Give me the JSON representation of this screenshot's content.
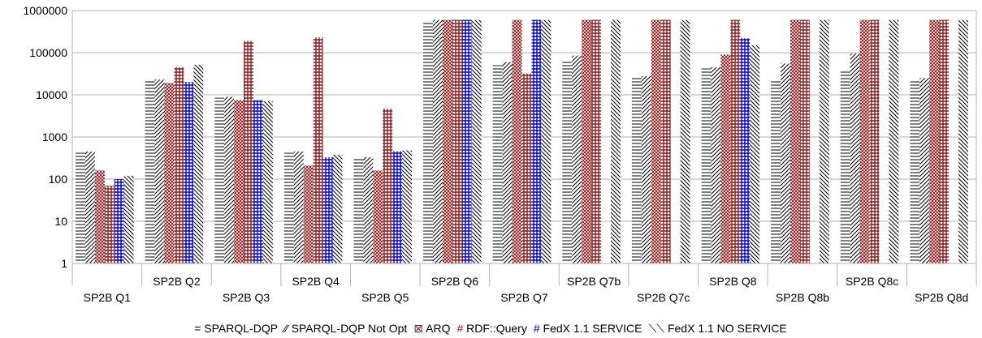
{
  "chart_data": {
    "type": "bar",
    "title": "",
    "xlabel": "",
    "ylabel": "",
    "yscale": "log",
    "ylim": [
      1,
      1000000
    ],
    "yticks": [
      "1",
      "10",
      "100",
      "1000",
      "10000",
      "100000",
      "1000000"
    ],
    "grid": "horizontal",
    "legend_position": "bottom",
    "categories": [
      "SP2B Q1",
      "SP2B Q2",
      "SP2B Q3",
      "SP2B Q4",
      "SP2B Q5",
      "SP2B Q6",
      "SP2B Q7",
      "SP2B Q7b",
      "SP2B Q7c",
      "SP2B Q8",
      "SP2B Q8b",
      "SP2B Q8c",
      "SP2B Q8d"
    ],
    "series": [
      {
        "name": "SPARQL-DQP",
        "symbol": "=",
        "color": "#000000",
        "pattern": "hlines",
        "values": [
          420,
          21000,
          8500,
          420,
          320,
          520000,
          50000,
          65000,
          26000,
          42000,
          23000,
          38000,
          23000
        ]
      },
      {
        "name": "SPARQL-DQP Not Opt",
        "symbol": "⁄⁄",
        "color": "#000000",
        "pattern": "fdiag",
        "values": [
          450,
          23000,
          9000,
          450,
          330,
          600000,
          60000,
          85000,
          28000,
          45000,
          55000,
          95000,
          25000
        ]
      },
      {
        "name": "ARQ",
        "symbol": "⊠",
        "color": "#8b1a1a",
        "pattern": "crosshatch",
        "values": [
          160,
          19000,
          7500,
          210,
          160,
          600000,
          600000,
          600000,
          600000,
          90000,
          600000,
          600000,
          600000
        ]
      },
      {
        "name": "RDF::Query",
        "symbol": "#",
        "color": "#8b1a1a",
        "pattern": "grid",
        "values": [
          70,
          45000,
          190000,
          230000,
          4700,
          600000,
          32000,
          600000,
          600000,
          600000,
          600000,
          600000,
          600000
        ]
      },
      {
        "name": "FedX 1.1 SERVICE",
        "symbol": "#",
        "color": "#0000cc",
        "pattern": "grid",
        "values": [
          100,
          20000,
          7500,
          330,
          460,
          600000,
          600000,
          null,
          null,
          220000,
          null,
          null,
          null
        ]
      },
      {
        "name": "FedX 1.1 NO SERVICE",
        "symbol": "⟍⟍",
        "color": "#000000",
        "pattern": "bdiag",
        "values": [
          120,
          52000,
          7000,
          380,
          480,
          600000,
          600000,
          600000,
          600000,
          150000,
          600000,
          600000,
          600000
        ]
      }
    ]
  }
}
